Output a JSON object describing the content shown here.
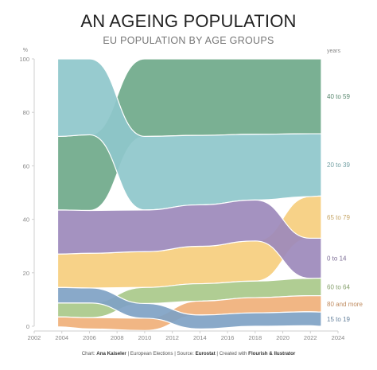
{
  "page": {
    "title": "AN AGEING POPULATION",
    "subtitle": "EU POPULATION BY AGE GROUPS",
    "credit": {
      "chart_prefix": "Chart: ",
      "chart_author": "Ana Kaiseler",
      "sep1": " | European Elections | Source: ",
      "source": "Eurostat",
      "sep2": " | Created with ",
      "tool": "Flourish & Ilustrator"
    }
  },
  "chart_data": {
    "type": "area",
    "subtype": "ranked stacked area (bump)",
    "title": "AN AGEING POPULATION",
    "subtitle": "EU POPULATION BY AGE GROUPS",
    "ylabel": "%",
    "legend_title": "years",
    "legend_position": "right",
    "ylim": [
      0,
      100
    ],
    "xlim": [
      2002,
      2024
    ],
    "x_ticks": [
      2002,
      2004,
      2006,
      2008,
      2010,
      2012,
      2014,
      2016,
      2018,
      2020,
      2022,
      2024
    ],
    "y_ticks": [
      0,
      20,
      40,
      60,
      80,
      100
    ],
    "grid": false,
    "x": [
      2003,
      2006,
      2010,
      2014,
      2018,
      2022,
      2023
    ],
    "series": [
      {
        "name": "40 to 59",
        "color": "#6fa98a",
        "values": [
          27.5,
          28.3,
          29.0,
          28.6,
          28.2,
          28.0,
          28.0
        ]
      },
      {
        "name": "20 to 39",
        "color": "#8ec7cb",
        "values": [
          29.0,
          28.4,
          27.5,
          26.0,
          24.6,
          23.5,
          23.3
        ]
      },
      {
        "name": "65 to 79",
        "color": "#f6ce7e",
        "values": [
          12.5,
          13.0,
          13.4,
          14.0,
          15.0,
          15.6,
          15.8
        ]
      },
      {
        "name": "0 to 14",
        "color": "#9c89bb",
        "values": [
          16.5,
          16.0,
          15.6,
          15.5,
          15.3,
          15.0,
          14.9
        ]
      },
      {
        "name": "60 to 64",
        "color": "#a9c98a",
        "values": [
          5.2,
          5.5,
          6.0,
          6.5,
          6.2,
          6.5,
          6.6
        ]
      },
      {
        "name": "80 and more",
        "color": "#f0b07a",
        "values": [
          3.7,
          4.2,
          4.6,
          5.2,
          5.7,
          6.0,
          6.1
        ]
      },
      {
        "name": "15 to 19",
        "color": "#7fa2c4",
        "values": [
          5.8,
          5.6,
          5.5,
          5.2,
          5.0,
          5.2,
          5.3
        ]
      }
    ]
  }
}
